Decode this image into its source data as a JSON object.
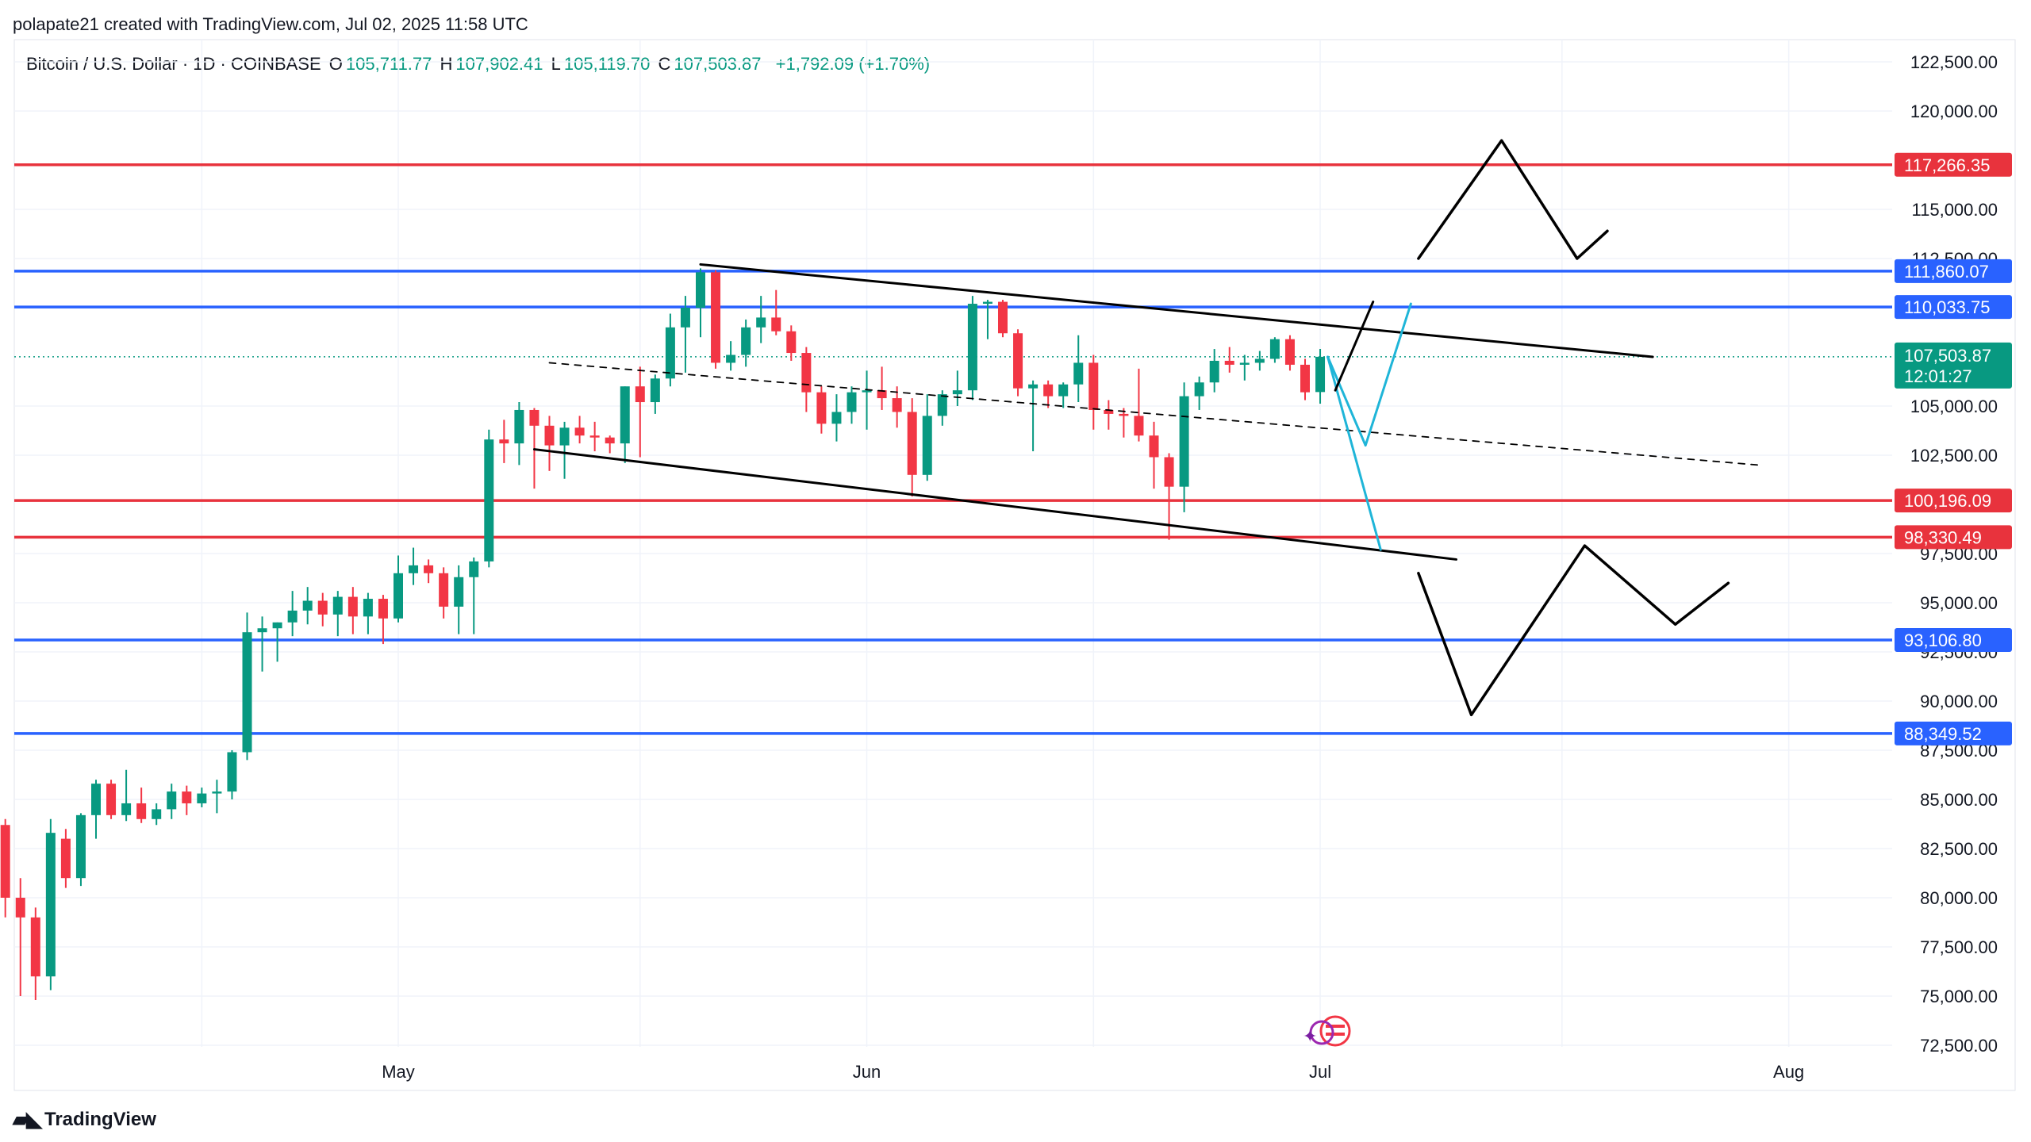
{
  "header": {
    "credit": "polapate21 created with TradingView.com, Jul 02, 2025 11:58 UTC"
  },
  "legend": {
    "symbol": "Bitcoin / U.S. Dollar · 1D · COINBASE",
    "o_label": "O",
    "o": "105,711.77",
    "h_label": "H",
    "h": "107,902.41",
    "l_label": "L",
    "l": "105,119.70",
    "c_label": "C",
    "c": "107,503.87",
    "change": "+1,792.09 (+1.70%)"
  },
  "footer": {
    "brand": "TradingView"
  },
  "colors": {
    "up": "#089981",
    "down": "#f23645",
    "red_line": "#e8333d",
    "blue_line": "#2962ff",
    "cyan": "#1fb5d8",
    "black": "#000000"
  },
  "chart_data": {
    "type": "candlestick",
    "y_axis": {
      "min": 72500,
      "max": 122500,
      "ticks": [
        "122,500.00",
        "120,000.00",
        "115,000.00",
        "112,500.00",
        "105,000.00",
        "102,500.00",
        "97,500.00",
        "95,000.00",
        "92,500.00",
        "90,000.00",
        "87,500.00",
        "85,000.00",
        "82,500.00",
        "80,000.00",
        "77,500.00",
        "75,000.00",
        "72,500.00"
      ],
      "tick_values": [
        122500,
        120000,
        115000,
        112500,
        105000,
        102500,
        97500,
        95000,
        92500,
        90000,
        87500,
        85000,
        82500,
        80000,
        77500,
        75000,
        72500
      ]
    },
    "x_axis": {
      "labels": [
        {
          "text": "May",
          "day": 0
        },
        {
          "text": "Jun",
          "day": 31
        },
        {
          "text": "Jul",
          "day": 61
        },
        {
          "text": "Aug",
          "day": 92
        }
      ],
      "range_days": [
        -26.5,
        97
      ]
    },
    "candles": [
      {
        "d": -26,
        "o": 83700,
        "h": 84000,
        "l": 79000,
        "c": 80000
      },
      {
        "d": -25,
        "o": 80000,
        "h": 81000,
        "l": 75000,
        "c": 79000
      },
      {
        "d": -24,
        "o": 79000,
        "h": 79500,
        "l": 74800,
        "c": 76000
      },
      {
        "d": -23,
        "o": 76000,
        "h": 84000,
        "l": 75300,
        "c": 83300
      },
      {
        "d": -22,
        "o": 83000,
        "h": 83500,
        "l": 80500,
        "c": 81000
      },
      {
        "d": -21,
        "o": 81000,
        "h": 84300,
        "l": 80600,
        "c": 84200
      },
      {
        "d": -20,
        "o": 84200,
        "h": 86000,
        "l": 83000,
        "c": 85800
      },
      {
        "d": -19,
        "o": 85800,
        "h": 86000,
        "l": 84000,
        "c": 84200
      },
      {
        "d": -18,
        "o": 84200,
        "h": 86500,
        "l": 83900,
        "c": 84800
      },
      {
        "d": -17,
        "o": 84800,
        "h": 85600,
        "l": 83800,
        "c": 84000
      },
      {
        "d": -16,
        "o": 84000,
        "h": 84800,
        "l": 83700,
        "c": 84500
      },
      {
        "d": -15,
        "o": 84500,
        "h": 85800,
        "l": 84000,
        "c": 85400
      },
      {
        "d": -14,
        "o": 85400,
        "h": 85700,
        "l": 84200,
        "c": 84800
      },
      {
        "d": -13,
        "o": 84800,
        "h": 85600,
        "l": 84600,
        "c": 85300
      },
      {
        "d": -12,
        "o": 85300,
        "h": 86000,
        "l": 84300,
        "c": 85400
      },
      {
        "d": -11,
        "o": 85400,
        "h": 87500,
        "l": 85000,
        "c": 87400
      },
      {
        "d": -10,
        "o": 87400,
        "h": 94500,
        "l": 87000,
        "c": 93500
      },
      {
        "d": -9,
        "o": 93500,
        "h": 94300,
        "l": 91500,
        "c": 93700
      },
      {
        "d": -8,
        "o": 93700,
        "h": 94000,
        "l": 92000,
        "c": 94000
      },
      {
        "d": -7,
        "o": 94000,
        "h": 95600,
        "l": 93300,
        "c": 94600
      },
      {
        "d": -6,
        "o": 94600,
        "h": 95800,
        "l": 93900,
        "c": 95100
      },
      {
        "d": -5,
        "o": 95100,
        "h": 95500,
        "l": 93800,
        "c": 94400
      },
      {
        "d": -4,
        "o": 94400,
        "h": 95600,
        "l": 93300,
        "c": 95300
      },
      {
        "d": -3,
        "o": 95300,
        "h": 95800,
        "l": 93400,
        "c": 94300
      },
      {
        "d": -2,
        "o": 94300,
        "h": 95500,
        "l": 93400,
        "c": 95200
      },
      {
        "d": -1,
        "o": 95200,
        "h": 95400,
        "l": 92900,
        "c": 94200
      },
      {
        "d": 0,
        "o": 94200,
        "h": 97400,
        "l": 94000,
        "c": 96500
      },
      {
        "d": 1,
        "o": 96500,
        "h": 97800,
        "l": 95900,
        "c": 96900
      },
      {
        "d": 2,
        "o": 96900,
        "h": 97200,
        "l": 96000,
        "c": 96500
      },
      {
        "d": 3,
        "o": 96500,
        "h": 96800,
        "l": 94200,
        "c": 94800
      },
      {
        "d": 4,
        "o": 94800,
        "h": 96900,
        "l": 93400,
        "c": 96300
      },
      {
        "d": 5,
        "o": 96300,
        "h": 97300,
        "l": 93400,
        "c": 97100
      },
      {
        "d": 6,
        "o": 97100,
        "h": 103800,
        "l": 96800,
        "c": 103300
      },
      {
        "d": 7,
        "o": 103300,
        "h": 104300,
        "l": 102100,
        "c": 103100
      },
      {
        "d": 8,
        "o": 103100,
        "h": 105200,
        "l": 102000,
        "c": 104800
      },
      {
        "d": 9,
        "o": 104800,
        "h": 104900,
        "l": 100800,
        "c": 104000
      },
      {
        "d": 10,
        "o": 104000,
        "h": 104500,
        "l": 101700,
        "c": 103000
      },
      {
        "d": 11,
        "o": 103000,
        "h": 104200,
        "l": 101300,
        "c": 103900
      },
      {
        "d": 12,
        "o": 103900,
        "h": 104500,
        "l": 103100,
        "c": 103500
      },
      {
        "d": 13,
        "o": 103500,
        "h": 104200,
        "l": 102700,
        "c": 103400
      },
      {
        "d": 14,
        "o": 103400,
        "h": 103500,
        "l": 102600,
        "c": 103100
      },
      {
        "d": 15,
        "o": 103100,
        "h": 106000,
        "l": 102100,
        "c": 106000
      },
      {
        "d": 16,
        "o": 106000,
        "h": 107000,
        "l": 102400,
        "c": 105200
      },
      {
        "d": 17,
        "o": 105200,
        "h": 106600,
        "l": 104600,
        "c": 106400
      },
      {
        "d": 18,
        "o": 106400,
        "h": 109700,
        "l": 106000,
        "c": 109000
      },
      {
        "d": 19,
        "o": 109000,
        "h": 110600,
        "l": 106700,
        "c": 110000
      },
      {
        "d": 20,
        "o": 110000,
        "h": 112000,
        "l": 108500,
        "c": 111800
      },
      {
        "d": 21,
        "o": 111800,
        "h": 111900,
        "l": 106900,
        "c": 107200
      },
      {
        "d": 22,
        "o": 107200,
        "h": 108300,
        "l": 106800,
        "c": 107600
      },
      {
        "d": 23,
        "o": 107600,
        "h": 109400,
        "l": 107000,
        "c": 109000
      },
      {
        "d": 24,
        "o": 109000,
        "h": 110600,
        "l": 108200,
        "c": 109500
      },
      {
        "d": 25,
        "o": 109500,
        "h": 110900,
        "l": 108600,
        "c": 108800
      },
      {
        "d": 26,
        "o": 108800,
        "h": 109100,
        "l": 107300,
        "c": 107700
      },
      {
        "d": 27,
        "o": 107700,
        "h": 108000,
        "l": 104700,
        "c": 105700
      },
      {
        "d": 28,
        "o": 105700,
        "h": 106000,
        "l": 103600,
        "c": 104100
      },
      {
        "d": 29,
        "o": 104100,
        "h": 105600,
        "l": 103200,
        "c": 104700
      },
      {
        "d": 30,
        "o": 104700,
        "h": 106000,
        "l": 104100,
        "c": 105700
      },
      {
        "d": 31,
        "o": 105700,
        "h": 106800,
        "l": 103800,
        "c": 105800
      },
      {
        "d": 32,
        "o": 105800,
        "h": 107000,
        "l": 104800,
        "c": 105400
      },
      {
        "d": 33,
        "o": 105400,
        "h": 106000,
        "l": 103900,
        "c": 104700
      },
      {
        "d": 34,
        "o": 104700,
        "h": 105400,
        "l": 100400,
        "c": 101500
      },
      {
        "d": 35,
        "o": 101500,
        "h": 105600,
        "l": 101200,
        "c": 104500
      },
      {
        "d": 36,
        "o": 104500,
        "h": 105800,
        "l": 104000,
        "c": 105600
      },
      {
        "d": 37,
        "o": 105600,
        "h": 106800,
        "l": 105000,
        "c": 105800
      },
      {
        "d": 38,
        "o": 105800,
        "h": 110600,
        "l": 105300,
        "c": 110200
      },
      {
        "d": 39,
        "o": 110200,
        "h": 110400,
        "l": 108400,
        "c": 110300
      },
      {
        "d": 40,
        "o": 110300,
        "h": 110400,
        "l": 108500,
        "c": 108700
      },
      {
        "d": 41,
        "o": 108700,
        "h": 108900,
        "l": 105500,
        "c": 105900
      },
      {
        "d": 42,
        "o": 105900,
        "h": 106300,
        "l": 102700,
        "c": 106100
      },
      {
        "d": 43,
        "o": 106100,
        "h": 106300,
        "l": 104900,
        "c": 105500
      },
      {
        "d": 44,
        "o": 105500,
        "h": 106200,
        "l": 104900,
        "c": 106100
      },
      {
        "d": 45,
        "o": 106100,
        "h": 108600,
        "l": 105200,
        "c": 107200
      },
      {
        "d": 46,
        "o": 107200,
        "h": 107600,
        "l": 103800,
        "c": 104800
      },
      {
        "d": 47,
        "o": 104800,
        "h": 105300,
        "l": 103800,
        "c": 104600
      },
      {
        "d": 48,
        "o": 104600,
        "h": 104900,
        "l": 103400,
        "c": 104500
      },
      {
        "d": 49,
        "o": 104500,
        "h": 106900,
        "l": 103200,
        "c": 103500
      },
      {
        "d": 50,
        "o": 103500,
        "h": 104200,
        "l": 100800,
        "c": 102400
      },
      {
        "d": 51,
        "o": 102400,
        "h": 102600,
        "l": 98200,
        "c": 100900
      },
      {
        "d": 52,
        "o": 100900,
        "h": 106200,
        "l": 99600,
        "c": 105500
      },
      {
        "d": 53,
        "o": 105500,
        "h": 106500,
        "l": 104800,
        "c": 106200
      },
      {
        "d": 54,
        "o": 106200,
        "h": 107900,
        "l": 105700,
        "c": 107300
      },
      {
        "d": 55,
        "o": 107300,
        "h": 108000,
        "l": 106700,
        "c": 107100
      },
      {
        "d": 56,
        "o": 107100,
        "h": 107600,
        "l": 106300,
        "c": 107200
      },
      {
        "d": 57,
        "o": 107200,
        "h": 107800,
        "l": 106800,
        "c": 107400
      },
      {
        "d": 58,
        "o": 107400,
        "h": 108500,
        "l": 107200,
        "c": 108400
      },
      {
        "d": 59,
        "o": 108400,
        "h": 108600,
        "l": 106800,
        "c": 107100
      },
      {
        "d": 60,
        "o": 107100,
        "h": 107400,
        "l": 105300,
        "c": 105700
      },
      {
        "d": 61,
        "o": 105711.77,
        "h": 107902.41,
        "l": 105119.7,
        "c": 107503.87
      }
    ],
    "horizontal_levels": [
      {
        "value": 117266.35,
        "label": "117,266.35",
        "color": "red"
      },
      {
        "value": 111860.07,
        "label": "111,860.07",
        "color": "blue"
      },
      {
        "value": 110033.75,
        "label": "110,033.75",
        "color": "blue"
      },
      {
        "value": 100196.09,
        "label": "100,196.09",
        "color": "red"
      },
      {
        "value": 98330.49,
        "label": "98,330.49",
        "color": "red"
      },
      {
        "value": 93106.8,
        "label": "93,106.80",
        "color": "blue"
      },
      {
        "value": 88349.52,
        "label": "88,349.52",
        "color": "blue"
      }
    ],
    "last_price": {
      "value": 107503.87,
      "label": "107,503.87",
      "countdown": "12:01:27"
    },
    "drawings": {
      "channel_upper": [
        [
          20,
          112200
        ],
        [
          83,
          107500
        ]
      ],
      "channel_lower": [
        [
          9,
          102800
        ],
        [
          70,
          97200
        ]
      ],
      "channel_mid": [
        [
          10,
          107200
        ],
        [
          90,
          102000
        ]
      ],
      "cyan_down": [
        [
          61.5,
          107500
        ],
        [
          65,
          97700
        ]
      ],
      "cyan_up": [
        [
          61.5,
          107500
        ],
        [
          64,
          103000
        ],
        [
          67,
          110200
        ]
      ],
      "black_up_short": [
        [
          62,
          105800
        ],
        [
          64.5,
          110300
        ]
      ],
      "bull_path": [
        [
          67.5,
          112500
        ],
        [
          73,
          118500
        ],
        [
          78,
          112500
        ],
        [
          80,
          113900
        ]
      ],
      "bear_path": [
        [
          67.5,
          96500
        ],
        [
          71,
          89300
        ],
        [
          78.5,
          97900
        ],
        [
          84.5,
          93900
        ],
        [
          88,
          96000
        ]
      ]
    }
  }
}
